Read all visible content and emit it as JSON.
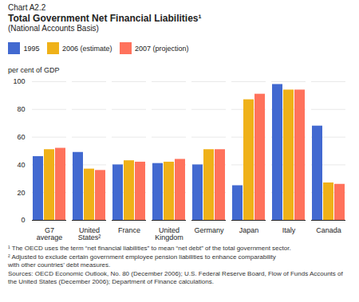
{
  "chart_data": {
    "type": "bar",
    "title": "Total Government Net Financial Liabilities¹",
    "subtitle": "(National Accounts Basis)",
    "y_label": "per cent of GDP",
    "annotations": [
      "Chart A2.2",
      "¹ The OECD uses the term “net financial liabilities” to mean “net debt” of the total government sector.",
      "² Adjusted to exclude certain government employee pension liabilities to enhance comparability\nwith other countries’ debt measures.",
      "Sources: OECD Economic Outlook, No. 80 (December 2006); U.S. Federal Reserve Board, Flow of Funds Accounts of the United States (December 2006); Department of Finance calculations."
    ],
    "categories": [
      "G7\naverage",
      "United\nStates²",
      "France",
      "United\nKingdom",
      "Germany",
      "Japan",
      "Italy",
      "Canada"
    ],
    "series": [
      {
        "name": "1995",
        "values": [
          46,
          49,
          40,
          41,
          40,
          25,
          98,
          68
        ]
      },
      {
        "name": "2006 (estimate)",
        "values": [
          51,
          37,
          43,
          42,
          51,
          87,
          94,
          27
        ]
      },
      {
        "name": "2007 (projection)",
        "values": [
          52,
          36,
          42,
          44,
          51,
          91,
          94,
          26
        ]
      }
    ],
    "ylim": [
      0,
      100
    ],
    "yticks": [
      0,
      20,
      40,
      60,
      80,
      100
    ],
    "grid": true,
    "legend": "top-left"
  }
}
